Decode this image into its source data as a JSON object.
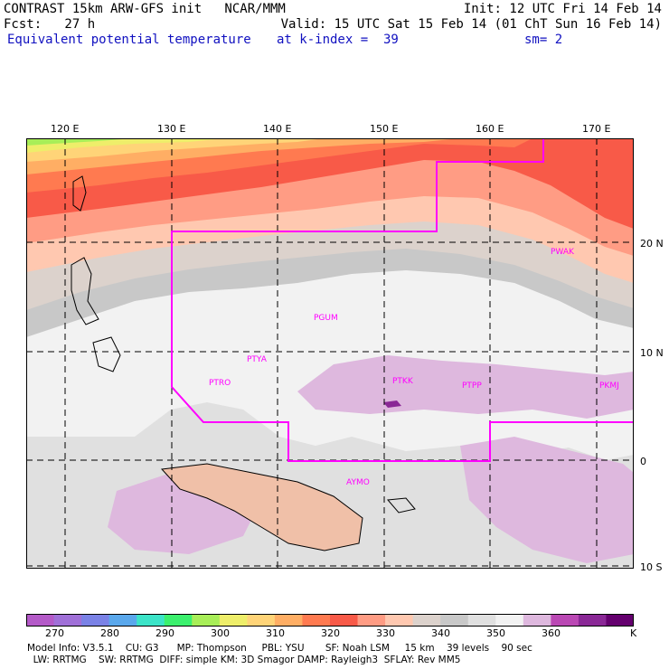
{
  "header": {
    "line1_left": "CONTRAST 15km ARW-GFS init   NCAR/MMM",
    "line1_right": "Init: 12 UTC Fri 14 Feb 14",
    "line2_left": "Fcst:   27 h",
    "line2_right": "Valid: 15 UTC Sat 15 Feb 14 (01 ChT Sun 16 Feb 14)",
    "line3_left": "Equivalent potential temperature",
    "line3_mid": "at k-index =  39",
    "line3_right": "sm= 2"
  },
  "map": {
    "lon_labels": [
      "120 E",
      "130 E",
      "140 E",
      "150 E",
      "160 E",
      "170 E"
    ],
    "lat_labels": [
      "20 N",
      "10 N",
      "0",
      "10 S"
    ],
    "stations": [
      "PWAK",
      "PGUM",
      "PTYA",
      "PTRO",
      "PTKK",
      "PTPP",
      "PKMJ",
      "AYMO"
    ],
    "colors": {
      "domain_outline": "#ff00ff",
      "station_label": "#ff00ff"
    }
  },
  "colorbar": {
    "labels": [
      "270",
      "280",
      "290",
      "300",
      "310",
      "320",
      "330",
      "340",
      "350",
      "360",
      "K"
    ],
    "colors": [
      "#b45ac8",
      "#a070d8",
      "#7a82e6",
      "#5aa8ec",
      "#3ce4c8",
      "#3cf06e",
      "#a8ee58",
      "#eeee6a",
      "#ffd478",
      "#ffae64",
      "#ff7a50",
      "#f85a48",
      "#ff9c84",
      "#ffc8b0",
      "#dcd2cc",
      "#c8c8c8",
      "#e0e0e0",
      "#f2f2f2",
      "#deb8de",
      "#ba48b4",
      "#8a2896",
      "#64006e"
    ]
  },
  "footer": {
    "line1": "Model Info: V3.5.1    CU: G3      MP: Thompson     PBL: YSU       SF: Noah LSM     15 km    39 levels    90 sec",
    "line2": "  LW: RRTMG    SW: RRTMG  DIFF: simple KM: 3D Smagor DAMP: Rayleigh3  SFLAY: Rev MM5"
  }
}
